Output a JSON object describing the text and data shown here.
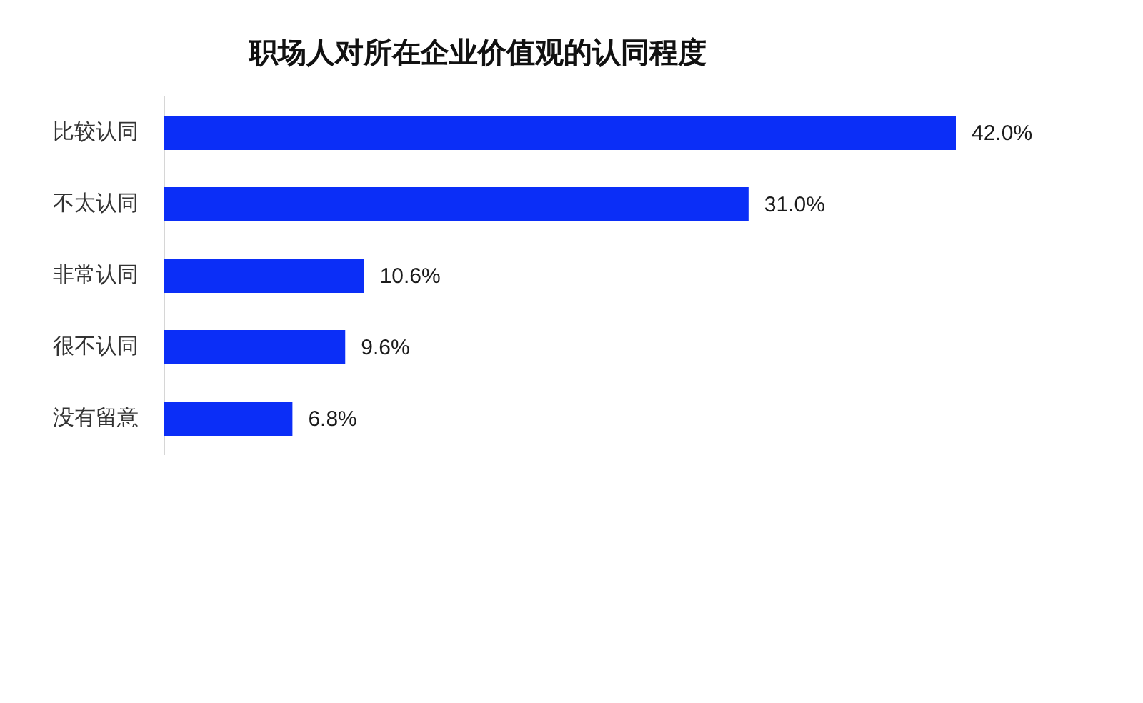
{
  "chart_data": {
    "type": "bar",
    "orientation": "horizontal",
    "title": "职场人对所在企业价值观的认同程度",
    "categories": [
      "比较认同",
      "不太认同",
      "非常认同",
      "很不认同",
      "没有留意"
    ],
    "values": [
      42.0,
      31.0,
      10.6,
      9.6,
      6.8
    ],
    "value_labels": [
      "42.0%",
      "31.0%",
      "10.6%",
      "9.6%",
      "6.8%"
    ],
    "color": "#0b2ef7"
  }
}
